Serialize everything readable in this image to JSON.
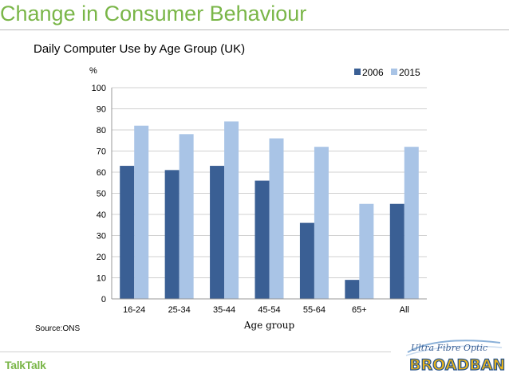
{
  "slide": {
    "title": "Change in Consumer Behaviour",
    "source": "Source:ONS"
  },
  "logos": {
    "talktalk": "TalkTalk",
    "broadband_script": "Ultra Fibre Optic",
    "broadband_word": "BROADBAND"
  },
  "colors": {
    "title": "#7ab648",
    "series_2006": "#3a5f94",
    "series_2015": "#a9c4e6"
  },
  "chart_data": {
    "type": "bar",
    "title": "Daily Computer Use by Age Group (UK)",
    "xlabel": "Age group",
    "ylabel": "%",
    "ylim": [
      0,
      100
    ],
    "yticks": [
      0,
      10,
      20,
      30,
      40,
      50,
      60,
      70,
      80,
      90,
      100
    ],
    "grid": true,
    "legend": "top-right",
    "categories": [
      "16-24",
      "25-34",
      "35-44",
      "45-54",
      "55-64",
      "65+",
      "All"
    ],
    "series": [
      {
        "name": "2006",
        "values": [
          63,
          61,
          63,
          56,
          36,
          9,
          45
        ]
      },
      {
        "name": "2015",
        "values": [
          82,
          78,
          84,
          76,
          72,
          45,
          72
        ]
      }
    ]
  }
}
